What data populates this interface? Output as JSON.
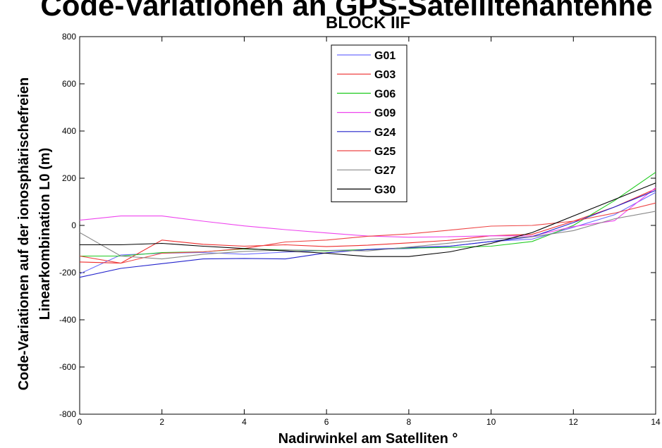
{
  "chart_data": {
    "type": "line",
    "title_line1": "Code-Variationen an GPS-Satellitenantenne der",
    "title_line2": "BLOCK IIF",
    "xlabel": "Nadirwinkel am Satelliten °",
    "ylabel_line1": "Code-Variationen auf der ionosphärischefreien",
    "ylabel_line2": "Linearkombination L0 (m)",
    "xlim": [
      0,
      14
    ],
    "ylim": [
      -800,
      800
    ],
    "xticks": [
      0,
      2,
      4,
      6,
      8,
      10,
      12,
      14
    ],
    "yticks": [
      -800,
      -600,
      -400,
      -200,
      0,
      200,
      400,
      600,
      800
    ],
    "xtick_labels": [
      "0",
      "2",
      "4",
      "6",
      "8",
      "10",
      "12",
      "14"
    ],
    "ytick_labels": [
      "-800",
      "-600",
      "-400",
      "-200",
      "0",
      "200",
      "400",
      "600",
      "800"
    ],
    "grid": false,
    "legend_position": "top-center",
    "x": [
      0,
      1,
      2,
      3,
      4,
      5,
      6,
      7,
      8,
      9,
      10,
      11,
      12,
      13,
      14
    ],
    "series": [
      {
        "name": "G01",
        "color": "#6f6fff",
        "values": [
          -205,
          -125,
          -118,
          -115,
          -122,
          -113,
          -106,
          -103,
          -98,
          -88,
          -68,
          -58,
          -8,
          45,
          140
        ]
      },
      {
        "name": "G03",
        "color": "#ee2c2c",
        "values": [
          -155,
          -160,
          -62,
          -80,
          -88,
          -82,
          -90,
          -84,
          -74,
          -63,
          -44,
          -38,
          18,
          78,
          155
        ]
      },
      {
        "name": "G06",
        "color": "#22cc22",
        "values": [
          -130,
          -130,
          -115,
          -112,
          -100,
          -104,
          -108,
          -102,
          -96,
          -93,
          -88,
          -68,
          0,
          105,
          225
        ]
      },
      {
        "name": "G09",
        "color": "#ee44ee",
        "values": [
          22,
          40,
          40,
          18,
          -2,
          -18,
          -32,
          -45,
          -50,
          -48,
          -44,
          -45,
          -5,
          20,
          160
        ]
      },
      {
        "name": "G24",
        "color": "#2222cc",
        "values": [
          -220,
          -182,
          -162,
          -142,
          -140,
          -142,
          -116,
          -102,
          -94,
          -88,
          -68,
          -48,
          12,
          78,
          148
        ]
      },
      {
        "name": "G25",
        "color": "#ee4444",
        "values": [
          -130,
          -160,
          -118,
          -112,
          -98,
          -70,
          -62,
          -46,
          -36,
          -20,
          -3,
          0,
          18,
          52,
          95
        ]
      },
      {
        "name": "G27",
        "color": "#888888",
        "values": [
          -30,
          -130,
          -142,
          -122,
          -110,
          -104,
          -106,
          -108,
          -92,
          -75,
          -58,
          -48,
          -22,
          28,
          60
        ]
      },
      {
        "name": "G30",
        "color": "#000000",
        "values": [
          -82,
          -82,
          -76,
          -88,
          -98,
          -108,
          -118,
          -132,
          -132,
          -112,
          -76,
          -30,
          40,
          110,
          180
        ]
      }
    ]
  }
}
